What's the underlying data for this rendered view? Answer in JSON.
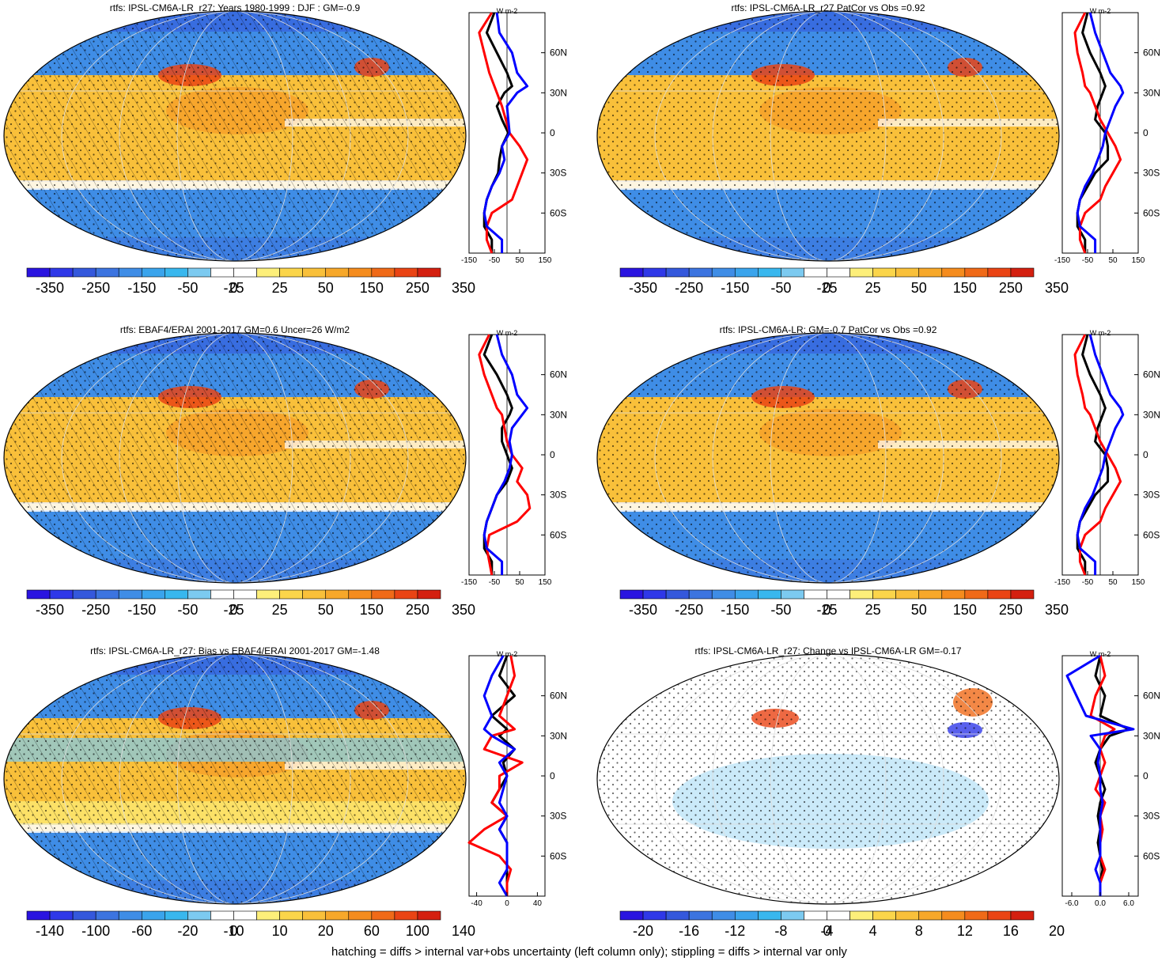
{
  "footnote": "hatching = diffs > internal var+obs uncertainty (left column only); stippling = diffs > internal var only",
  "colors": {
    "scale": [
      "#2a14e0",
      "#2f38e8",
      "#3458dc",
      "#3c74e0",
      "#3f8de6",
      "#3aa4ec",
      "#38b7ee",
      "#7ccaf0",
      "#ffffff",
      "#ffffff",
      "#fdef7a",
      "#fbd54a",
      "#f9c03a",
      "#f7a82a",
      "#f58c1e",
      "#f06a18",
      "#ea4414",
      "#d42010"
    ],
    "zonal_model": "#000000",
    "zonal_obs": "#ff0000",
    "zonal_other": "#0000ff"
  },
  "chart_data": [
    {
      "type": "heatmap",
      "panel": "top-left",
      "title": "rtfs: IPSL-CM6A-LR_r27: Years 1980-1999 : DJF : GM=-0.9",
      "colorbar_labels": [
        "-350",
        "-250",
        "-150",
        "-50",
        "-25",
        "0",
        "25",
        "50",
        "150",
        "250",
        "350"
      ],
      "zonal": {
        "units": "W m-2",
        "xticks": [
          {
            "v": -150,
            "label": "-150"
          },
          {
            "v": -50,
            "label": "-50"
          },
          {
            "v": 50,
            "label": "50"
          },
          {
            "v": 150,
            "label": "150"
          }
        ],
        "xlim": [
          -150,
          150
        ],
        "yticks": [
          "60N",
          "30N",
          "0",
          "30S",
          "60S"
        ],
        "lat": [
          90,
          75,
          60,
          45,
          35,
          30,
          20,
          10,
          0,
          -10,
          -20,
          -30,
          -40,
          -50,
          -60,
          -70,
          -80,
          -90
        ],
        "series": [
          {
            "color": "black",
            "values": [
              -50,
              -80,
              -40,
              0,
              20,
              -10,
              -40,
              -20,
              5,
              -20,
              -30,
              -35,
              -60,
              -80,
              -90,
              -90,
              -60,
              -60
            ]
          },
          {
            "color": "red",
            "values": [
              -60,
              -110,
              -90,
              -70,
              -50,
              -40,
              -20,
              -5,
              10,
              50,
              80,
              60,
              40,
              20,
              -60,
              -80,
              -80,
              -60
            ]
          },
          {
            "color": "blue",
            "values": [
              -40,
              -30,
              20,
              40,
              80,
              40,
              0,
              5,
              10,
              -20,
              -10,
              -30,
              -60,
              -80,
              -90,
              -80,
              -20,
              -20
            ]
          }
        ]
      }
    },
    {
      "type": "heatmap",
      "panel": "top-right",
      "title": "rtfs: IPSL-CM6A-LR_r27 PatCor vs Obs =0.92",
      "colorbar_labels": [
        "-350",
        "-250",
        "-150",
        "-50",
        "-25",
        "0",
        "25",
        "50",
        "150",
        "250",
        "350"
      ],
      "zonal": {
        "units": "W m-2",
        "xticks": [
          {
            "v": -150,
            "label": "-150"
          },
          {
            "v": -50,
            "label": "-50"
          },
          {
            "v": 50,
            "label": "50"
          },
          {
            "v": 150,
            "label": "150"
          }
        ],
        "xlim": [
          -150,
          150
        ],
        "yticks": [
          "60N",
          "30N",
          "0",
          "30S",
          "60S"
        ],
        "lat": [
          90,
          75,
          60,
          45,
          35,
          30,
          20,
          10,
          0,
          -10,
          -20,
          -30,
          -40,
          -50,
          -60,
          -70,
          -80,
          -90
        ],
        "series": [
          {
            "color": "black",
            "values": [
              -50,
              -70,
              -40,
              0,
              20,
              10,
              -10,
              -20,
              20,
              30,
              30,
              -20,
              -50,
              -80,
              -90,
              -90,
              -60,
              -60
            ]
          },
          {
            "color": "red",
            "values": [
              -60,
              -100,
              -90,
              -70,
              -60,
              -40,
              -20,
              0,
              30,
              60,
              80,
              50,
              20,
              0,
              -60,
              -80,
              -80,
              -60
            ]
          },
          {
            "color": "blue",
            "values": [
              -40,
              -20,
              10,
              40,
              80,
              90,
              60,
              40,
              20,
              10,
              -10,
              -30,
              -60,
              -80,
              -90,
              -80,
              -20,
              -20
            ]
          }
        ]
      }
    },
    {
      "type": "heatmap",
      "panel": "middle-left",
      "title": "rtfs: EBAF4/ERAI 2001-2017 GM=0.6 Uncer=26 W/m2",
      "colorbar_labels": [
        "-350",
        "-250",
        "-150",
        "-50",
        "-25",
        "0",
        "25",
        "50",
        "150",
        "250",
        "350"
      ],
      "zonal": {
        "units": "W m-2",
        "xticks": [
          {
            "v": -150,
            "label": "-150"
          },
          {
            "v": -50,
            "label": "-50"
          },
          {
            "v": 50,
            "label": "50"
          },
          {
            "v": 150,
            "label": "150"
          }
        ],
        "xlim": [
          -150,
          150
        ],
        "yticks": [
          "60N",
          "30N",
          "0",
          "30S",
          "60S"
        ],
        "lat": [
          90,
          75,
          60,
          45,
          35,
          30,
          20,
          10,
          0,
          -10,
          -20,
          -30,
          -40,
          -50,
          -60,
          -70,
          -80,
          -90
        ],
        "series": [
          {
            "color": "black",
            "values": [
              -60,
              -90,
              -40,
              0,
              20,
              10,
              -20,
              -20,
              0,
              20,
              0,
              -40,
              -60,
              -80,
              -90,
              -90,
              -60,
              -60
            ]
          },
          {
            "color": "red",
            "values": [
              -70,
              -110,
              -90,
              -60,
              -40,
              -20,
              -10,
              0,
              20,
              60,
              40,
              80,
              90,
              40,
              -70,
              -80,
              -70,
              -60
            ]
          },
          {
            "color": "blue",
            "values": [
              -40,
              -20,
              20,
              40,
              80,
              60,
              20,
              10,
              20,
              10,
              -10,
              -40,
              -60,
              -80,
              -90,
              -80,
              -20,
              -20
            ]
          }
        ]
      }
    },
    {
      "type": "heatmap",
      "panel": "middle-right",
      "title": "rtfs: IPSL-CM6A-LR: GM=-0.7 PatCor vs Obs =0.92",
      "colorbar_labels": [
        "-350",
        "-250",
        "-150",
        "-50",
        "-25",
        "0",
        "25",
        "50",
        "150",
        "250",
        "350"
      ],
      "zonal": {
        "units": "W m-2",
        "xticks": [
          {
            "v": -150,
            "label": "-150"
          },
          {
            "v": -50,
            "label": "-50"
          },
          {
            "v": 50,
            "label": "50"
          },
          {
            "v": 150,
            "label": "150"
          }
        ],
        "xlim": [
          -150,
          150
        ],
        "yticks": [
          "60N",
          "30N",
          "0",
          "30S",
          "60S"
        ],
        "lat": [
          90,
          75,
          60,
          45,
          35,
          30,
          20,
          10,
          0,
          -10,
          -20,
          -30,
          -40,
          -50,
          -60,
          -70,
          -80,
          -90
        ],
        "series": [
          {
            "color": "black",
            "values": [
              -50,
              -70,
              -40,
              0,
              20,
              10,
              -10,
              -20,
              20,
              30,
              30,
              -20,
              -50,
              -80,
              -90,
              -90,
              -60,
              -60
            ]
          },
          {
            "color": "red",
            "values": [
              -60,
              -100,
              -90,
              -70,
              -60,
              -40,
              -20,
              0,
              30,
              60,
              80,
              50,
              20,
              0,
              -60,
              -80,
              -80,
              -60
            ]
          },
          {
            "color": "blue",
            "values": [
              -40,
              -20,
              10,
              40,
              80,
              90,
              60,
              40,
              20,
              10,
              -10,
              -30,
              -60,
              -80,
              -90,
              -80,
              -20,
              -20
            ]
          }
        ]
      }
    },
    {
      "type": "heatmap",
      "panel": "bottom-left",
      "title": "rtfs: IPSL-CM6A-LR_r27: Bias vs EBAF4/ERAI 2001-2017 GM=-1.48",
      "colorbar_labels": [
        "-140",
        "-100",
        "-60",
        "-20",
        "-10",
        "0",
        "10",
        "20",
        "60",
        "100",
        "140"
      ],
      "zonal": {
        "units": "W m-2",
        "xticks": [
          {
            "v": -40,
            "label": "-40"
          },
          {
            "v": 0,
            "label": "0"
          },
          {
            "v": 40,
            "label": "40"
          }
        ],
        "xlim": [
          -50,
          50
        ],
        "yticks": [
          "60N",
          "30N",
          "0",
          "30S",
          "60S"
        ],
        "lat": [
          90,
          75,
          60,
          45,
          35,
          30,
          20,
          10,
          0,
          -10,
          -20,
          -30,
          -40,
          -50,
          -60,
          -70,
          -80,
          -90
        ],
        "series": [
          {
            "color": "black",
            "values": [
              0,
              -10,
              10,
              -20,
              0,
              -10,
              10,
              -5,
              0,
              -10,
              -20,
              0,
              -10,
              0,
              0,
              0,
              0,
              0
            ]
          },
          {
            "color": "red",
            "values": [
              5,
              10,
              0,
              -10,
              10,
              -20,
              -30,
              20,
              -10,
              -10,
              -20,
              0,
              -30,
              -50,
              -10,
              5,
              0,
              0
            ]
          },
          {
            "color": "blue",
            "values": [
              -5,
              -20,
              -30,
              -20,
              -30,
              -20,
              10,
              -10,
              0,
              -5,
              -10,
              0,
              -10,
              0,
              0,
              0,
              -10,
              0
            ]
          }
        ]
      }
    },
    {
      "type": "heatmap",
      "panel": "bottom-right",
      "title": "rtfs: IPSL-CM6A-LR_r27: Change vs IPSL-CM6A-LR GM=-0.17",
      "colorbar_labels": [
        "-20",
        "-16",
        "-12",
        "-8",
        "-4",
        "0",
        "4",
        "8",
        "12",
        "16",
        "20"
      ],
      "zonal": {
        "units": "W m-2",
        "xticks": [
          {
            "v": -6,
            "label": "-6.0"
          },
          {
            "v": 0,
            "label": "0.0"
          },
          {
            "v": 6,
            "label": "6.0"
          }
        ],
        "xlim": [
          -8,
          8
        ],
        "yticks": [
          "60N",
          "30N",
          "0",
          "30S",
          "60S"
        ],
        "lat": [
          90,
          75,
          60,
          45,
          35,
          30,
          20,
          10,
          0,
          -10,
          -20,
          -30,
          -40,
          -50,
          -60,
          -70,
          -80,
          -90
        ],
        "series": [
          {
            "color": "black",
            "values": [
              0,
              -1,
              1,
              0,
              6,
              2,
              0,
              -1,
              0,
              1,
              0,
              -0.5,
              0,
              -0.5,
              0,
              0.5,
              0,
              0
            ]
          },
          {
            "color": "red",
            "values": [
              0,
              1,
              -1,
              -2,
              3,
              1,
              0,
              1,
              0,
              -1,
              1,
              0,
              0.5,
              0,
              0,
              1,
              0,
              0
            ]
          },
          {
            "color": "blue",
            "values": [
              0,
              -7,
              -5,
              -3,
              7,
              -2,
              0,
              -0.5,
              0,
              0,
              0.5,
              0,
              0,
              0,
              0,
              -1,
              0,
              0
            ]
          }
        ]
      }
    }
  ]
}
